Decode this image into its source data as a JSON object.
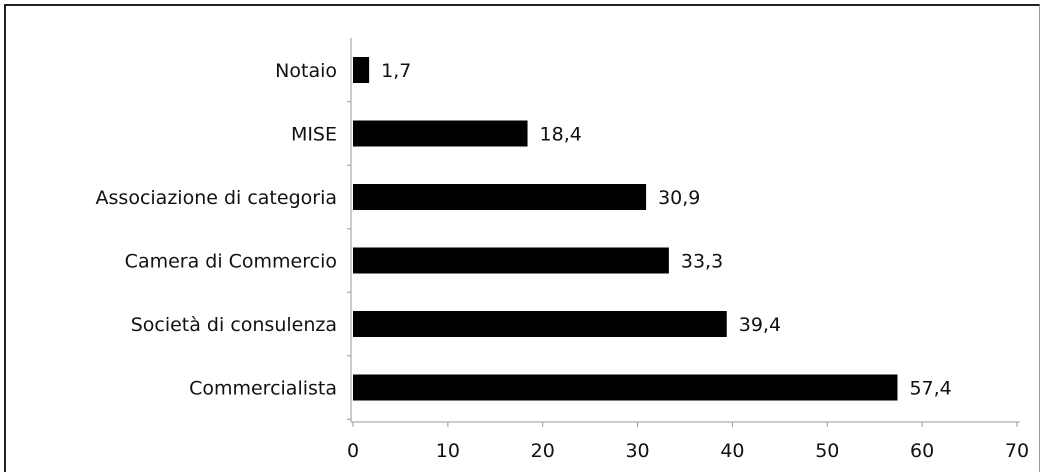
{
  "chart_data": {
    "type": "bar",
    "orientation": "horizontal",
    "categories": [
      "Notaio",
      "MISE",
      "Associazione di categoria",
      "Camera di Commercio",
      "Società di consulenza",
      "Commercialista"
    ],
    "values": [
      1.7,
      18.4,
      30.9,
      33.3,
      39.4,
      57.4
    ],
    "value_labels": [
      "1,7",
      "18,4",
      "30,9",
      "33,3",
      "39,4",
      "57,4"
    ],
    "xlim": [
      0,
      70
    ],
    "xticks": [
      0,
      10,
      20,
      30,
      40,
      50,
      60,
      70
    ],
    "bar_color": "#000000",
    "grid": false,
    "legend": "none"
  }
}
